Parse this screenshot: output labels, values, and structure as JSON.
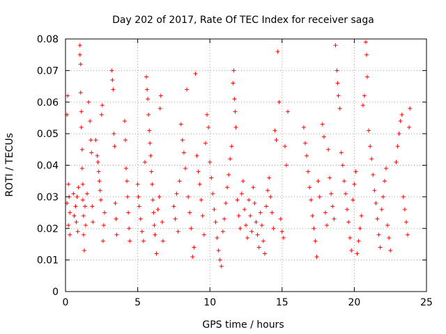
{
  "chart_data": {
    "type": "scatter",
    "title": "Day 202 of 2017, Rate Of TEC Index for receiver saga",
    "xlabel": "GPS time / hours",
    "ylabel": "ROTI / TECUs",
    "xlim": [
      0,
      25
    ],
    "ylim": [
      0,
      0.08
    ],
    "xticks": [
      "0",
      "5",
      "10",
      "15",
      "20",
      "25"
    ],
    "yticks": [
      "0",
      "0.01",
      "0.02",
      "0.03",
      "0.04",
      "0.05",
      "0.06",
      "0.07",
      "0.08"
    ],
    "grid": true,
    "marker": "+",
    "color": "#ff0000",
    "series": [
      {
        "points": [
          [
            0.1,
            0.028
          ],
          [
            0.1,
            0.056
          ],
          [
            0.15,
            0.062
          ],
          [
            0.2,
            0.034
          ],
          [
            0.2,
            0.021
          ],
          [
            0.25,
            0.03
          ],
          [
            0.3,
            0.018
          ],
          [
            0.3,
            0.025
          ],
          [
            0.55,
            0.031
          ],
          [
            0.6,
            0.024
          ],
          [
            0.7,
            0.027
          ],
          [
            0.75,
            0.022
          ],
          [
            0.8,
            0.03
          ],
          [
            0.85,
            0.019
          ],
          [
            0.9,
            0.033
          ],
          [
            1.0,
            0.078
          ],
          [
            1.0,
            0.075
          ],
          [
            1.05,
            0.072
          ],
          [
            1.05,
            0.063
          ],
          [
            1.1,
            0.057
          ],
          [
            1.1,
            0.052
          ],
          [
            1.15,
            0.045
          ],
          [
            1.15,
            0.039
          ],
          [
            1.2,
            0.034
          ],
          [
            1.2,
            0.029
          ],
          [
            1.25,
            0.024
          ],
          [
            1.25,
            0.018
          ],
          [
            1.3,
            0.013
          ],
          [
            1.35,
            0.027
          ],
          [
            1.4,
            0.021
          ],
          [
            1.5,
            0.031
          ],
          [
            1.6,
            0.06
          ],
          [
            1.7,
            0.054
          ],
          [
            1.75,
            0.048
          ],
          [
            1.8,
            0.044
          ],
          [
            1.85,
            0.027
          ],
          [
            1.9,
            0.022
          ],
          [
            2.1,
            0.048
          ],
          [
            2.2,
            0.043
          ],
          [
            2.25,
            0.041
          ],
          [
            2.3,
            0.038
          ],
          [
            2.35,
            0.035
          ],
          [
            2.4,
            0.032
          ],
          [
            2.45,
            0.029
          ],
          [
            2.5,
            0.056
          ],
          [
            2.55,
            0.059
          ],
          [
            2.6,
            0.016
          ],
          [
            2.65,
            0.021
          ],
          [
            2.7,
            0.025
          ],
          [
            3.2,
            0.07
          ],
          [
            3.25,
            0.067
          ],
          [
            3.3,
            0.064
          ],
          [
            3.35,
            0.05
          ],
          [
            3.4,
            0.046
          ],
          [
            3.45,
            0.028
          ],
          [
            3.5,
            0.023
          ],
          [
            3.55,
            0.018
          ],
          [
            4.1,
            0.054
          ],
          [
            4.15,
            0.048
          ],
          [
            4.2,
            0.039
          ],
          [
            4.25,
            0.035
          ],
          [
            4.3,
            0.03
          ],
          [
            4.35,
            0.025
          ],
          [
            4.4,
            0.02
          ],
          [
            4.45,
            0.016
          ],
          [
            5.0,
            0.034
          ],
          [
            5.05,
            0.03
          ],
          [
            5.1,
            0.027
          ],
          [
            5.2,
            0.023
          ],
          [
            5.3,
            0.019
          ],
          [
            5.4,
            0.016
          ],
          [
            5.5,
            0.041
          ],
          [
            5.6,
            0.068
          ],
          [
            5.65,
            0.064
          ],
          [
            5.7,
            0.061
          ],
          [
            5.75,
            0.056
          ],
          [
            5.8,
            0.051
          ],
          [
            5.85,
            0.047
          ],
          [
            5.9,
            0.043
          ],
          [
            5.95,
            0.038
          ],
          [
            6.0,
            0.034
          ],
          [
            6.05,
            0.029
          ],
          [
            6.1,
            0.025
          ],
          [
            6.15,
            0.021
          ],
          [
            6.2,
            0.018
          ],
          [
            6.3,
            0.012
          ],
          [
            6.4,
            0.026
          ],
          [
            6.5,
            0.03
          ],
          [
            6.55,
            0.058
          ],
          [
            6.6,
            0.062
          ],
          [
            6.7,
            0.022
          ],
          [
            6.75,
            0.016
          ],
          [
            7.5,
            0.027
          ],
          [
            7.6,
            0.023
          ],
          [
            7.7,
            0.031
          ],
          [
            7.8,
            0.019
          ],
          [
            7.9,
            0.035
          ],
          [
            8.0,
            0.053
          ],
          [
            8.1,
            0.048
          ],
          [
            8.2,
            0.044
          ],
          [
            8.3,
            0.039
          ],
          [
            8.4,
            0.064
          ],
          [
            8.5,
            0.03
          ],
          [
            8.6,
            0.025
          ],
          [
            8.7,
            0.02
          ],
          [
            8.8,
            0.011
          ],
          [
            8.9,
            0.014
          ],
          [
            9.0,
            0.069
          ],
          [
            9.1,
            0.043
          ],
          [
            9.2,
            0.038
          ],
          [
            9.3,
            0.034
          ],
          [
            9.4,
            0.029
          ],
          [
            9.5,
            0.024
          ],
          [
            9.6,
            0.018
          ],
          [
            9.7,
            0.047
          ],
          [
            9.8,
            0.056
          ],
          [
            9.9,
            0.052
          ],
          [
            10.0,
            0.041
          ],
          [
            10.1,
            0.036
          ],
          [
            10.2,
            0.031
          ],
          [
            10.3,
            0.026
          ],
          [
            10.4,
            0.022
          ],
          [
            10.5,
            0.017
          ],
          [
            10.6,
            0.013
          ],
          [
            10.7,
            0.01
          ],
          [
            10.8,
            0.008
          ],
          [
            10.9,
            0.019
          ],
          [
            11.0,
            0.023
          ],
          [
            11.1,
            0.028
          ],
          [
            11.2,
            0.033
          ],
          [
            11.3,
            0.037
          ],
          [
            11.4,
            0.042
          ],
          [
            11.5,
            0.046
          ],
          [
            11.6,
            0.066
          ],
          [
            11.65,
            0.07
          ],
          [
            11.7,
            0.061
          ],
          [
            11.75,
            0.057
          ],
          [
            11.8,
            0.052
          ],
          [
            11.9,
            0.029
          ],
          [
            12.0,
            0.024
          ],
          [
            12.1,
            0.02
          ],
          [
            12.2,
            0.031
          ],
          [
            12.3,
            0.035
          ],
          [
            12.4,
            0.026
          ],
          [
            12.5,
            0.021
          ],
          [
            12.6,
            0.017
          ],
          [
            12.7,
            0.029
          ],
          [
            12.8,
            0.024
          ],
          [
            12.9,
            0.019
          ],
          [
            13.0,
            0.033
          ],
          [
            13.1,
            0.028
          ],
          [
            13.2,
            0.022
          ],
          [
            13.3,
            0.018
          ],
          [
            13.4,
            0.014
          ],
          [
            13.5,
            0.025
          ],
          [
            13.6,
            0.021
          ],
          [
            13.7,
            0.016
          ],
          [
            13.8,
            0.012
          ],
          [
            13.9,
            0.027
          ],
          [
            14.0,
            0.032
          ],
          [
            14.1,
            0.036
          ],
          [
            14.2,
            0.03
          ],
          [
            14.3,
            0.025
          ],
          [
            14.4,
            0.02
          ],
          [
            14.5,
            0.051
          ],
          [
            14.6,
            0.048
          ],
          [
            14.7,
            0.076
          ],
          [
            14.8,
            0.06
          ],
          [
            14.9,
            0.023
          ],
          [
            15.0,
            0.019
          ],
          [
            15.1,
            0.017
          ],
          [
            15.2,
            0.046
          ],
          [
            15.3,
            0.04
          ],
          [
            15.4,
            0.057
          ],
          [
            16.5,
            0.052
          ],
          [
            16.6,
            0.047
          ],
          [
            16.7,
            0.043
          ],
          [
            16.8,
            0.038
          ],
          [
            16.9,
            0.033
          ],
          [
            17.0,
            0.029
          ],
          [
            17.1,
            0.024
          ],
          [
            17.2,
            0.02
          ],
          [
            17.3,
            0.016
          ],
          [
            17.4,
            0.011
          ],
          [
            17.5,
            0.035
          ],
          [
            17.6,
            0.03
          ],
          [
            17.8,
            0.053
          ],
          [
            17.9,
            0.049
          ],
          [
            18.0,
            0.025
          ],
          [
            18.1,
            0.021
          ],
          [
            18.2,
            0.045
          ],
          [
            18.3,
            0.036
          ],
          [
            18.4,
            0.031
          ],
          [
            18.5,
            0.027
          ],
          [
            18.6,
            0.023
          ],
          [
            18.7,
            0.078
          ],
          [
            18.8,
            0.07
          ],
          [
            18.85,
            0.066
          ],
          [
            18.9,
            0.062
          ],
          [
            19.0,
            0.058
          ],
          [
            19.1,
            0.044
          ],
          [
            19.2,
            0.04
          ],
          [
            19.3,
            0.035
          ],
          [
            19.4,
            0.031
          ],
          [
            19.5,
            0.026
          ],
          [
            19.6,
            0.022
          ],
          [
            19.7,
            0.017
          ],
          [
            19.8,
            0.013
          ],
          [
            19.9,
            0.029
          ],
          [
            20.0,
            0.034
          ],
          [
            20.1,
            0.038
          ],
          [
            20.2,
            0.012
          ],
          [
            20.3,
            0.016
          ],
          [
            20.4,
            0.02
          ],
          [
            20.5,
            0.024
          ],
          [
            20.6,
            0.059
          ],
          [
            20.7,
            0.062
          ],
          [
            20.8,
            0.079
          ],
          [
            20.85,
            0.075
          ],
          [
            20.9,
            0.068
          ],
          [
            21.0,
            0.051
          ],
          [
            21.1,
            0.046
          ],
          [
            21.2,
            0.042
          ],
          [
            21.3,
            0.037
          ],
          [
            21.4,
            0.032
          ],
          [
            21.5,
            0.028
          ],
          [
            21.6,
            0.023
          ],
          [
            21.7,
            0.018
          ],
          [
            21.8,
            0.014
          ],
          [
            21.9,
            0.026
          ],
          [
            22.0,
            0.03
          ],
          [
            22.1,
            0.035
          ],
          [
            22.2,
            0.039
          ],
          [
            22.3,
            0.021
          ],
          [
            22.4,
            0.017
          ],
          [
            22.5,
            0.013
          ],
          [
            22.9,
            0.041
          ],
          [
            23.0,
            0.046
          ],
          [
            23.1,
            0.05
          ],
          [
            23.2,
            0.054
          ],
          [
            23.3,
            0.056
          ],
          [
            23.4,
            0.03
          ],
          [
            23.5,
            0.026
          ],
          [
            23.6,
            0.022
          ],
          [
            23.7,
            0.018
          ],
          [
            23.8,
            0.052
          ],
          [
            23.85,
            0.058
          ]
        ]
      }
    ]
  }
}
